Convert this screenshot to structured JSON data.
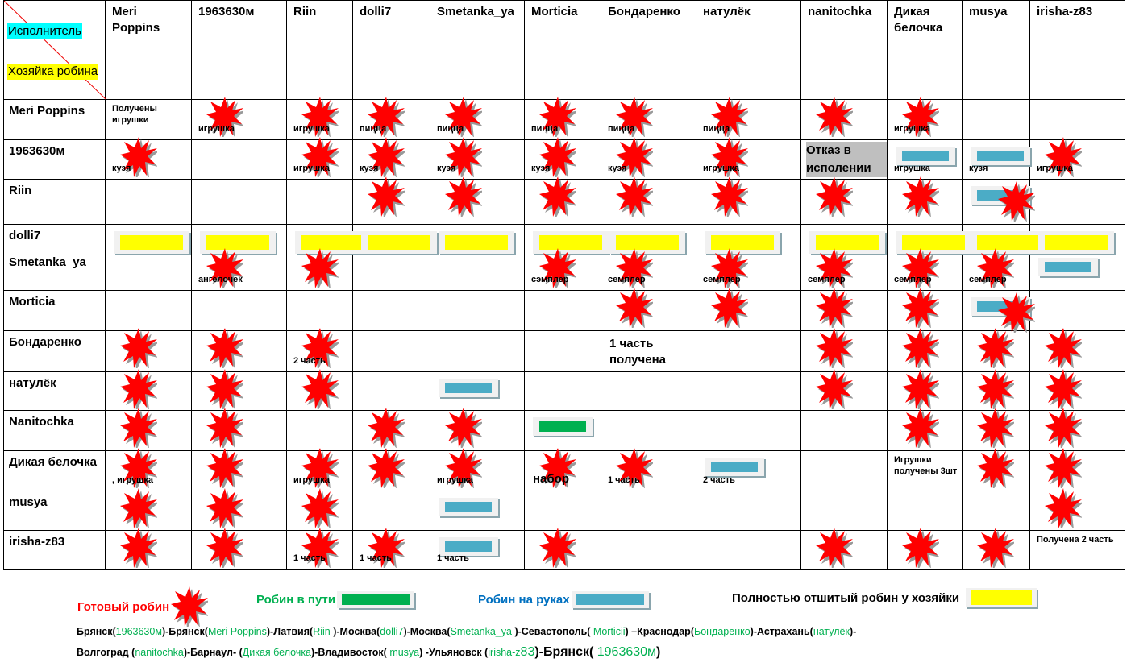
{
  "corner": {
    "performer": "Исполнитель",
    "owner": "Хозяйка робина"
  },
  "columns": [
    "Meri Poppins",
    "1963630м",
    "Riin",
    "dolli7",
    "Smetanka_ya",
    "Morticia",
    "Бондаренко",
    "натулёк",
    "nanitochka",
    "Дикая белочка",
    "musya",
    "irisha-z83"
  ],
  "rows": [
    {
      "name": "Meri Poppins",
      "cells": [
        {
          "text": "Получены игрушки"
        },
        {
          "star": true,
          "text": "игрушка"
        },
        {
          "star": true,
          "text": "игрушка"
        },
        {
          "star": true,
          "text": "пицца"
        },
        {
          "star": true,
          "text": "пицца"
        },
        {
          "star": true,
          "text": "пицца"
        },
        {
          "star": true,
          "text": "пицца"
        },
        {
          "star": true,
          "text": "пицца"
        },
        {
          "star": true
        },
        {
          "star": true,
          "text": "игрушка"
        },
        {},
        {}
      ]
    },
    {
      "name": "1963630м",
      "cells": [
        {
          "star": true,
          "text": "кузя"
        },
        {},
        {
          "star": true,
          "text": "игрушка"
        },
        {
          "star": true,
          "text": "кузя"
        },
        {
          "star": true,
          "text": "кузя"
        },
        {
          "star": true,
          "text": "кузя"
        },
        {
          "star": true,
          "text": "кузя"
        },
        {
          "star": true,
          "text": "игрушка"
        },
        {
          "text": "Отказ в исполении",
          "style": "gray"
        },
        {
          "bar": "blue",
          "text": "игрушка"
        },
        {
          "bar": "blue",
          "text": "кузя"
        },
        {
          "star": true,
          "text": "игрушка"
        }
      ]
    },
    {
      "name": "Riin",
      "cells": [
        {},
        {},
        {},
        {
          "star": true
        },
        {
          "star": true
        },
        {
          "star": true
        },
        {
          "star": true
        },
        {
          "star": true
        },
        {
          "star": true
        },
        {
          "star": true
        },
        {
          "bar": "blue",
          "star": true
        },
        {}
      ]
    },
    {
      "name": "dolli7",
      "cells": [
        {
          "bar": "yellow"
        },
        {
          "bar": "yellow"
        },
        {
          "bar": "yellow"
        },
        {
          "bar": "yellow"
        },
        {
          "bar": "yellow"
        },
        {
          "bar": "yellow"
        },
        {
          "bar": "yellow"
        },
        {
          "bar": "yellow"
        },
        {
          "bar": "yellow"
        },
        {
          "bar": "yellow"
        },
        {
          "bar": "yellow"
        },
        {
          "bar": "yellow"
        }
      ]
    },
    {
      "name": "Smetanka_ya",
      "cells": [
        {},
        {
          "star": true,
          "text": "ангелочек"
        },
        {
          "star": true
        },
        {},
        {},
        {
          "star": true,
          "text": "сэмплер"
        },
        {
          "star": true,
          "text": "семплер"
        },
        {
          "star": true,
          "text": "семплер"
        },
        {
          "star": true,
          "text": "семплер"
        },
        {
          "star": true,
          "text": "семплер"
        },
        {
          "star": true,
          "text": "семплер"
        },
        {
          "bar": "blue"
        }
      ]
    },
    {
      "name": "Morticia",
      "cells": [
        {},
        {},
        {},
        {},
        {},
        {},
        {
          "star": true
        },
        {
          "star": true
        },
        {
          "star": true
        },
        {
          "star": true
        },
        {
          "bar": "blue",
          "star": true
        },
        {}
      ]
    },
    {
      "name": "Бондаренко",
      "cells": [
        {
          "star": true
        },
        {
          "star": true
        },
        {
          "star": true,
          "text": "2 часть"
        },
        {},
        {},
        {},
        {
          "text": "1 часть получена",
          "style": "big"
        },
        {},
        {
          "star": true
        },
        {
          "star": true
        },
        {
          "star": true
        },
        {
          "star": true
        }
      ]
    },
    {
      "name": "натулёк",
      "cells": [
        {
          "star": true
        },
        {
          "star": true
        },
        {
          "star": true
        },
        {},
        {
          "bar": "blue"
        },
        {},
        {},
        {},
        {
          "star": true
        },
        {
          "star": true
        },
        {
          "star": true
        },
        {
          "star": true
        }
      ]
    },
    {
      "name": "Nanitochka",
      "cells": [
        {
          "star": true
        },
        {
          "star": true
        },
        {},
        {
          "star": true
        },
        {
          "star": true
        },
        {
          "bar": "green"
        },
        {},
        {},
        {},
        {
          "star": true
        },
        {
          "star": true
        },
        {
          "star": true
        }
      ]
    },
    {
      "name": "Дикая белочка",
      "cells": [
        {
          "star": true,
          "text": ", игрушка"
        },
        {
          "star": true
        },
        {
          "star": true,
          "text": "игрушка"
        },
        {
          "star": true
        },
        {
          "star": true,
          "text": "игрушка"
        },
        {
          "star": true,
          "text": "набор",
          "style": "big"
        },
        {
          "star": true,
          "text": "1 часть"
        },
        {
          "bar": "blue",
          "text": "2 часть"
        },
        {},
        {
          "text": "Игрушки получены 3шт"
        },
        {
          "star": true
        },
        {
          "star": true
        }
      ]
    },
    {
      "name": "musya",
      "cells": [
        {
          "star": true
        },
        {
          "star": true
        },
        {
          "star": true
        },
        {},
        {
          "bar": "blue"
        },
        {},
        {},
        {},
        {},
        {},
        {},
        {
          "star": true
        }
      ]
    },
    {
      "name": "irisha-z83",
      "cells": [
        {
          "star": true
        },
        {
          "star": true
        },
        {
          "star": true,
          "text": "1 часть"
        },
        {
          "star": true,
          "text": "1 часть"
        },
        {
          "bar": "blue",
          "text": "1 часть"
        },
        {
          "star": true
        },
        {},
        {},
        {
          "star": true
        },
        {
          "star": true
        },
        {
          "star": true
        },
        {
          "text": "Получена 2 часть"
        }
      ]
    }
  ],
  "legend": {
    "ready": "Готовый робин",
    "in_transit": "Робин в пути",
    "in_hands": "Робин на руках",
    "finished": "Полностью отшитый робин у хозяйки"
  },
  "colors": {
    "star": "#ff0000",
    "blue": "#4bacc6",
    "green": "#00b050",
    "yellow": "#ffff00",
    "legend_in_hands": "#0070c0"
  },
  "route": [
    [
      {
        "t": "Брянск("
      },
      {
        "t": "1963630м",
        "g": 1
      },
      {
        "t": ")-Брянск("
      },
      {
        "t": "Meri Poppins",
        "g": 1
      },
      {
        "t": ")-Латвия("
      },
      {
        "t": "Riin ",
        "g": 1
      },
      {
        "t": ")-Москва("
      },
      {
        "t": "dolli7",
        "g": 1
      },
      {
        "t": ")-Москва("
      },
      {
        "t": "Smetanka_ya ",
        "g": 1
      },
      {
        "t": ")-Севастополь( "
      },
      {
        "t": "Morticii",
        "g": 1
      },
      {
        "t": ") –Краснодар("
      },
      {
        "t": "Бондаренко",
        "g": 1
      },
      {
        "t": ")-Астрахань("
      },
      {
        "t": "натулёк",
        "g": 1
      },
      {
        "t": ")-"
      }
    ],
    [
      {
        "t": "Волгоград ("
      },
      {
        "t": "nanitochka",
        "g": 1
      },
      {
        "t": ")-Барнаул- ("
      },
      {
        "t": "Дикая белочка",
        "g": 1
      },
      {
        "t": ")-Владивосток( "
      },
      {
        "t": "musya",
        "g": 1
      },
      {
        "t": ") -Ульяновск ("
      },
      {
        "t": "irisha-z",
        "g": 1
      },
      {
        "t": "83",
        "g": 1,
        "l": 1
      },
      {
        "t": ")-Брянск( ",
        "l": 1
      },
      {
        "t": "1963630м",
        "g": 1,
        "l": 1
      },
      {
        "t": ")",
        "l": 1
      }
    ]
  ]
}
